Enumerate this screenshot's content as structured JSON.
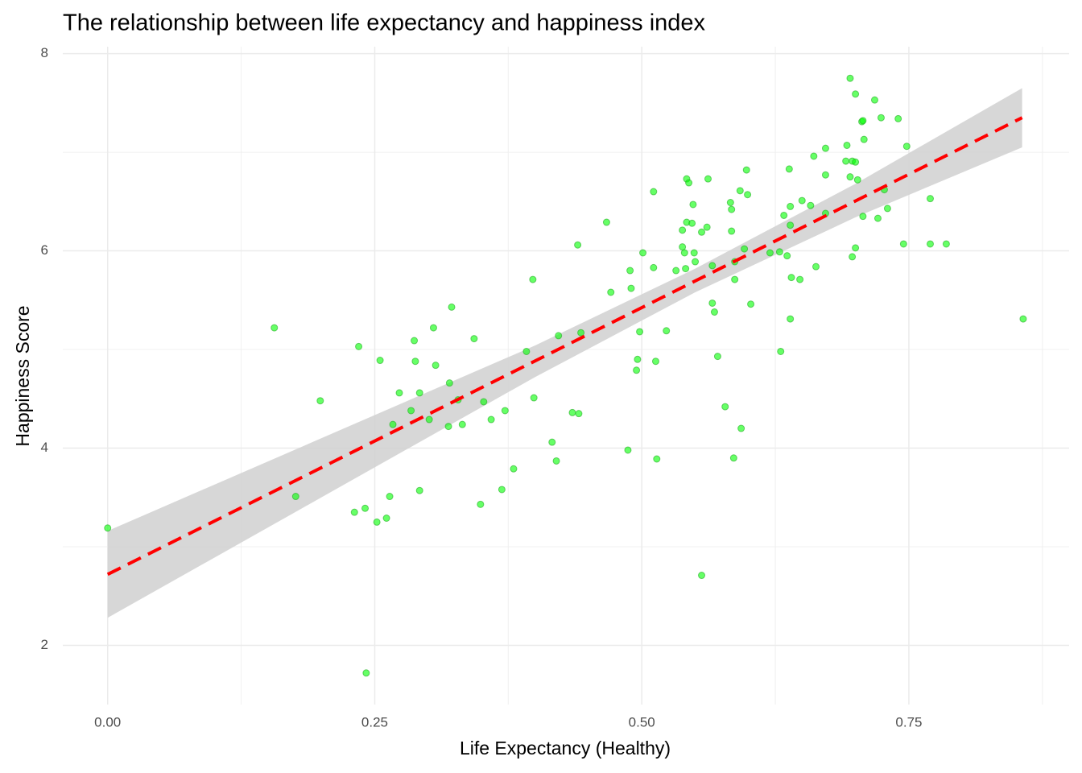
{
  "chart_data": {
    "type": "scatter",
    "title": "The relationship between life expectancy and happiness index",
    "x_label": "Life Expectancy (Healthy)",
    "y_label": "Happiness Score",
    "x": [
      0,
      0.156,
      0.176,
      0.199,
      0.235,
      0.231,
      0.241,
      0.242,
      0.252,
      0.255,
      0.261,
      0.264,
      0.267,
      0.273,
      0.284,
      0.287,
      0.288,
      0.292,
      0.292,
      0.301,
      0.305,
      0.307,
      0.319,
      0.32,
      0.322,
      0.328,
      0.332,
      0.343,
      0.349,
      0.352,
      0.359,
      0.369,
      0.372,
      0.38,
      0.392,
      0.398,
      0.399,
      0.416,
      0.42,
      0.422,
      0.435,
      0.441,
      0.44,
      0.443,
      0.467,
      0.471,
      0.487,
      0.489,
      0.49,
      0.495,
      0.496,
      0.498,
      0.501,
      0.511,
      0.511,
      0.513,
      0.514,
      0.523,
      0.532,
      0.538,
      0.538,
      0.54,
      0.541,
      0.542,
      0.542,
      0.544,
      0.547,
      0.548,
      0.549,
      0.55,
      0.556,
      0.556,
      0.561,
      0.562,
      0.566,
      0.566,
      0.568,
      0.571,
      0.578,
      0.583,
      0.584,
      0.584,
      0.586,
      0.587,
      0.587,
      0.592,
      0.593,
      0.596,
      0.598,
      0.599,
      0.602,
      0.62,
      0.629,
      0.63,
      0.633,
      0.636,
      0.638,
      0.639,
      0.639,
      0.639,
      0.64,
      0.648,
      0.65,
      0.658,
      0.661,
      0.663,
      0.672,
      0.672,
      0.672,
      0.691,
      0.692,
      0.695,
      0.695,
      0.697,
      0.697,
      0.7,
      0.7,
      0.7,
      0.702,
      0.706,
      0.707,
      0.707,
      0.708,
      0.718,
      0.721,
      0.724,
      0.727,
      0.73,
      0.74,
      0.745,
      0.748,
      0.77,
      0.77,
      0.785,
      0.857
    ],
    "values": [
      3.19,
      5.22,
      3.51,
      4.48,
      5.03,
      3.35,
      3.39,
      1.72,
      3.25,
      4.89,
      3.29,
      3.51,
      4.24,
      4.56,
      4.38,
      5.09,
      4.88,
      3.57,
      4.56,
      4.29,
      5.22,
      4.84,
      4.22,
      4.66,
      5.43,
      4.49,
      4.24,
      5.11,
      3.43,
      4.47,
      4.29,
      3.58,
      4.38,
      3.79,
      4.98,
      5.71,
      4.51,
      4.06,
      3.87,
      5.14,
      4.36,
      4.35,
      6.06,
      5.17,
      6.29,
      5.58,
      3.98,
      5.8,
      5.62,
      4.79,
      4.9,
      5.18,
      5.98,
      6.6,
      5.83,
      4.88,
      3.89,
      5.19,
      5.8,
      6.21,
      6.04,
      5.98,
      5.82,
      6.73,
      6.29,
      6.69,
      6.28,
      6.47,
      5.98,
      5.89,
      2.71,
      6.19,
      6.24,
      6.73,
      5.47,
      5.85,
      5.38,
      4.93,
      4.42,
      6.49,
      6.42,
      6.2,
      3.9,
      5.71,
      5.89,
      6.61,
      4.2,
      6.02,
      6.82,
      6.57,
      5.46,
      5.98,
      5.99,
      4.98,
      6.36,
      5.95,
      6.83,
      5.31,
      6.45,
      6.26,
      5.73,
      5.71,
      6.51,
      6.46,
      6.96,
      5.84,
      6.77,
      6.38,
      7.04,
      6.91,
      7.07,
      7.75,
      6.75,
      6.91,
      5.94,
      7.59,
      6.9,
      6.03,
      6.72,
      7.31,
      7.32,
      6.35,
      7.13,
      7.53,
      6.33,
      7.35,
      6.62,
      6.43,
      7.34,
      6.07,
      7.06,
      6.53,
      6.07,
      6.07,
      5.31
    ],
    "color": "#00ff00",
    "point_alpha": 0.6,
    "fit": {
      "x": [
        0,
        0.856
      ],
      "y": [
        2.72,
        7.35
      ],
      "color": "#ff0000"
    },
    "band": {
      "x": [
        0,
        0.2,
        0.4,
        0.55,
        0.7,
        0.856
      ],
      "lower": [
        2.28,
        3.5,
        4.72,
        5.58,
        6.34,
        7.05
      ],
      "upper": [
        3.16,
        4.1,
        5.04,
        5.82,
        6.68,
        7.65
      ],
      "color": "#d3d3d3"
    },
    "xlim": [
      -0.042,
      0.9
    ],
    "ylim": [
      1.4,
      8.07
    ],
    "xticks": [
      {
        "value": 0,
        "label": "0.00"
      },
      {
        "value": 0.25,
        "label": "0.25"
      },
      {
        "value": 0.5,
        "label": "0.50"
      },
      {
        "value": 0.75,
        "label": "0.75"
      }
    ],
    "yticks": [
      2,
      4,
      6,
      8
    ],
    "x_minor_ticks": [
      0.125,
      0.375,
      0.625,
      0.875
    ],
    "y_minor_ticks": [
      3,
      5,
      7
    ],
    "grid": true
  }
}
